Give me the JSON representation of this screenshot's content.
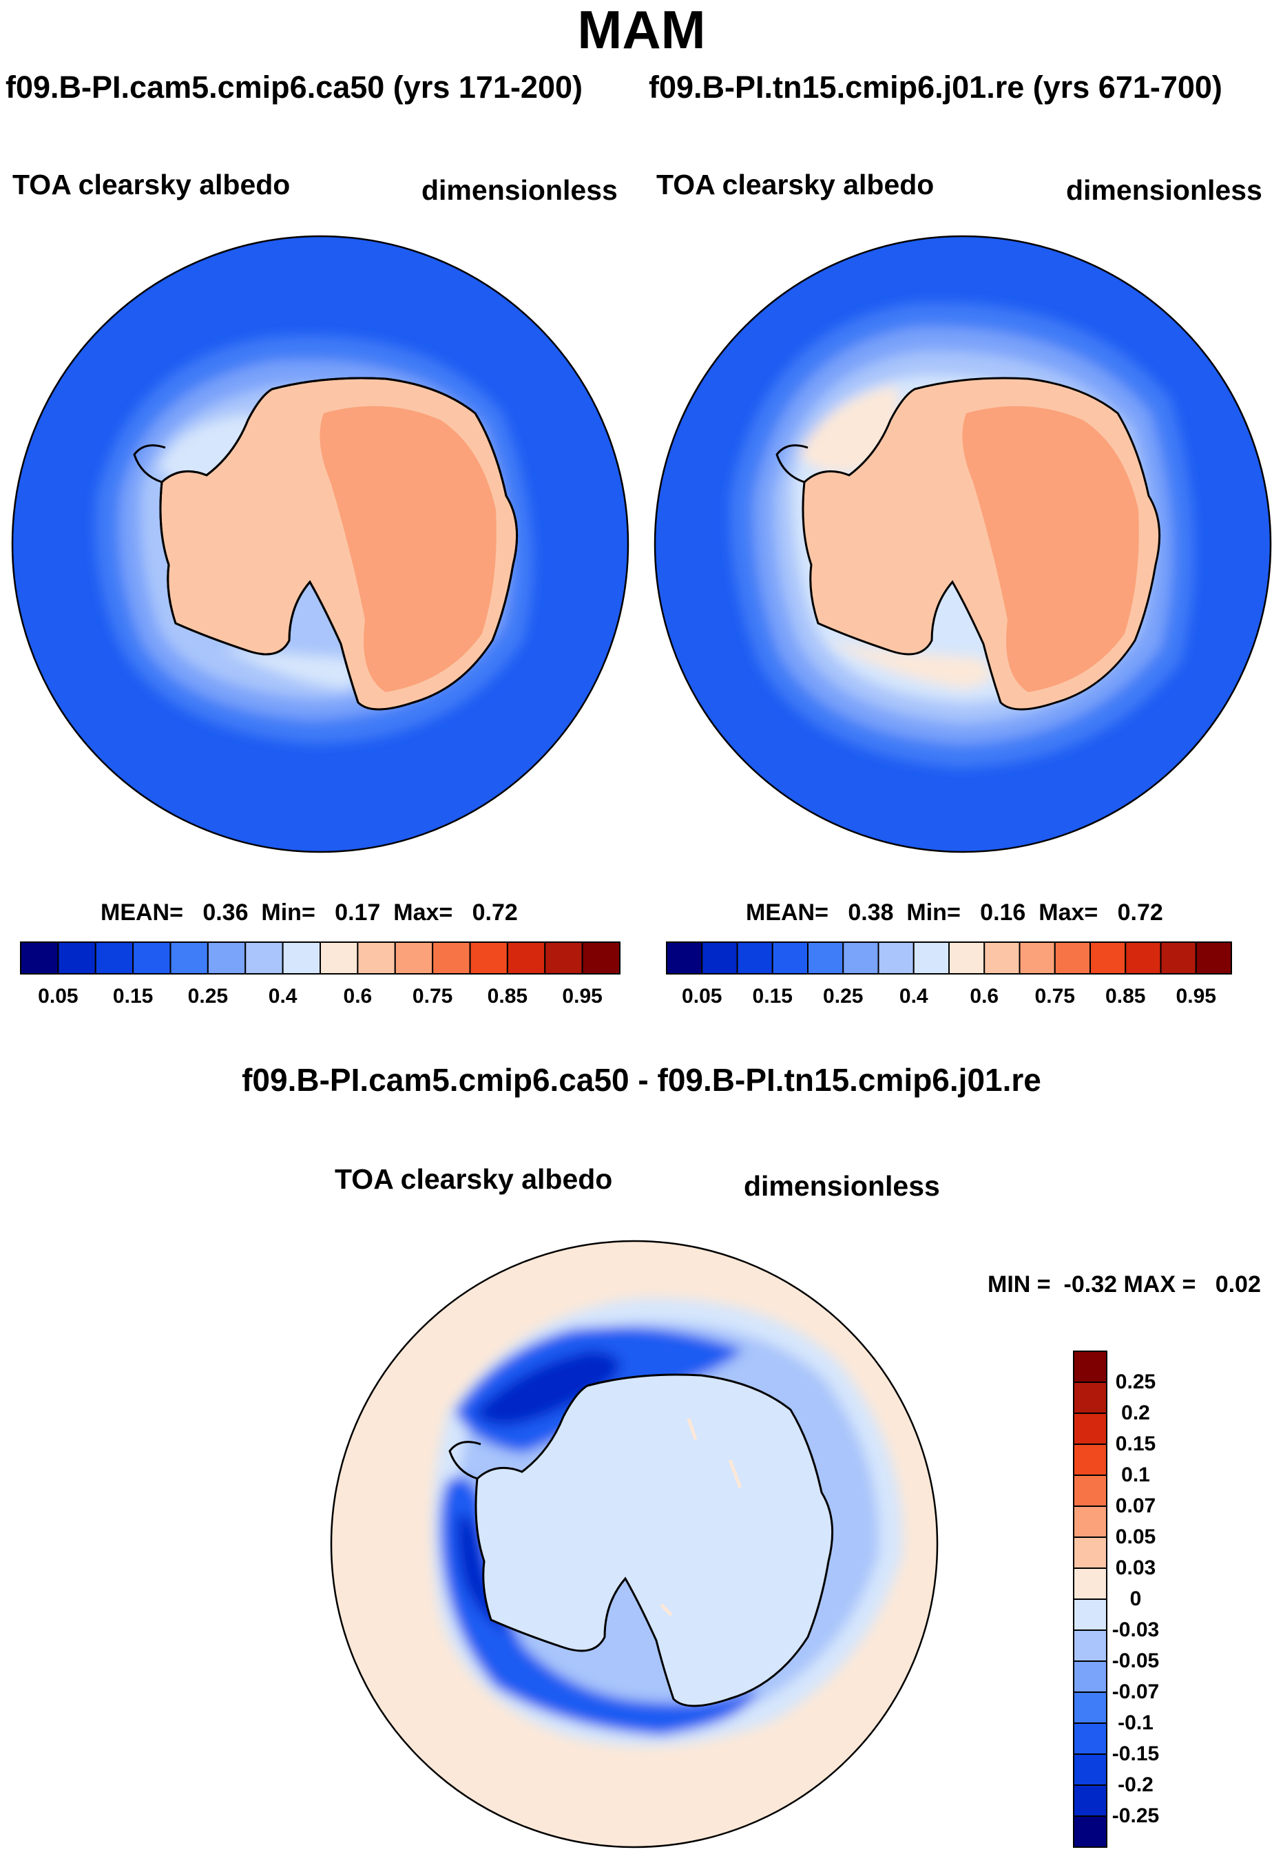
{
  "title": "MAM",
  "panels": [
    {
      "run_label": "f09.B-PI.cam5.cmip6.ca50 (yrs 171-200)",
      "variable": "TOA clearsky albedo",
      "units": "dimensionless",
      "stats": {
        "mean_label": "MEAN=",
        "mean": "0.36",
        "min_label": "Min=",
        "min": "0.17",
        "max_label": "Max=",
        "max": "0.72"
      }
    },
    {
      "run_label": "f09.B-PI.tn15.cmip6.j01.re (yrs 671-700)",
      "variable": "TOA clearsky albedo",
      "units": "dimensionless",
      "stats": {
        "mean_label": "MEAN=",
        "mean": "0.38",
        "min_label": "Min=",
        "min": "0.16",
        "max_label": "Max=",
        "max": "0.72"
      }
    }
  ],
  "colorbar": {
    "colors": [
      "#00007f",
      "#0028c8",
      "#0a3fe0",
      "#1e5cf2",
      "#3f7cf7",
      "#7aa3fa",
      "#a9c5fb",
      "#d6e6fc",
      "#fce8d8",
      "#fcc6a6",
      "#fba27a",
      "#f77446",
      "#f04a1e",
      "#d6280c",
      "#b0180a",
      "#7f0000"
    ],
    "ticks": [
      "0.05",
      "0.15",
      "0.25",
      "0.4",
      "0.6",
      "0.75",
      "0.85",
      "0.95"
    ]
  },
  "difference": {
    "title": "f09.B-PI.cam5.cmip6.ca50 - f09.B-PI.tn15.cmip6.j01.re",
    "variable": "TOA clearsky albedo",
    "units": "dimensionless",
    "minmax": {
      "min_label": "MIN =",
      "min": "-0.32",
      "max_label": "MAX =",
      "max": "0.02"
    },
    "colorbar": {
      "colors": [
        "#7f0000",
        "#b0180a",
        "#d6280c",
        "#f04a1e",
        "#f77446",
        "#fba27a",
        "#fcc6a6",
        "#fce8d8",
        "#d6e6fc",
        "#a9c5fb",
        "#7aa3fa",
        "#3f7cf7",
        "#1e5cf2",
        "#0a3fe0",
        "#0028c8",
        "#00007f"
      ],
      "ticks": [
        "0.25",
        "0.2",
        "0.15",
        "0.1",
        "0.07",
        "0.05",
        "0.03",
        "0",
        "-0.03",
        "-0.05",
        "-0.07",
        "-0.1",
        "-0.15",
        "-0.2",
        "-0.25"
      ]
    }
  },
  "map_colors": {
    "ocean": "#1e5cf2",
    "diff_ocean": "#fce8d8",
    "diff_land": "#d6e6fc"
  }
}
